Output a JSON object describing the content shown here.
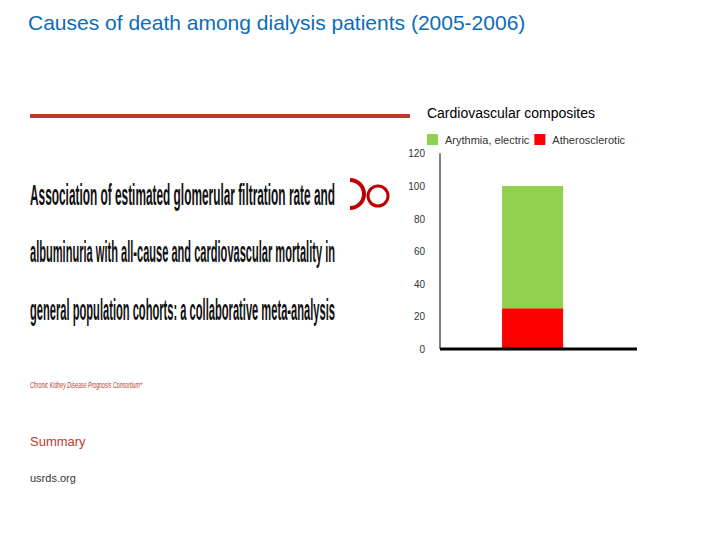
{
  "page": {
    "title": "Causes of death among dialysis patients (2005-2006)",
    "paper": {
      "lines": [
        "Association of estimated glomerular filtration rate and",
        "albuminuria with all-cause and cardiovascular mortality in",
        "general population cohorts: a collaborative meta-analysis"
      ],
      "authors": "Chronic Kidney Disease Prognosis Consortium*",
      "section": "Summary"
    },
    "source": "usrds.org"
  },
  "chart_data": {
    "type": "bar",
    "title": "Cardiovascular composites",
    "stacked": true,
    "categories": [
      null
    ],
    "series": [
      {
        "name": "Atherosclerotic",
        "color": "#ff0000",
        "values": [
          25
        ]
      },
      {
        "name": "Arythmia, electric",
        "color": "#92d050",
        "values": [
          75
        ]
      }
    ],
    "ylim": [
      0,
      120
    ],
    "yticks": [
      0,
      20,
      40,
      60,
      80,
      100,
      120
    ],
    "grid": false
  }
}
